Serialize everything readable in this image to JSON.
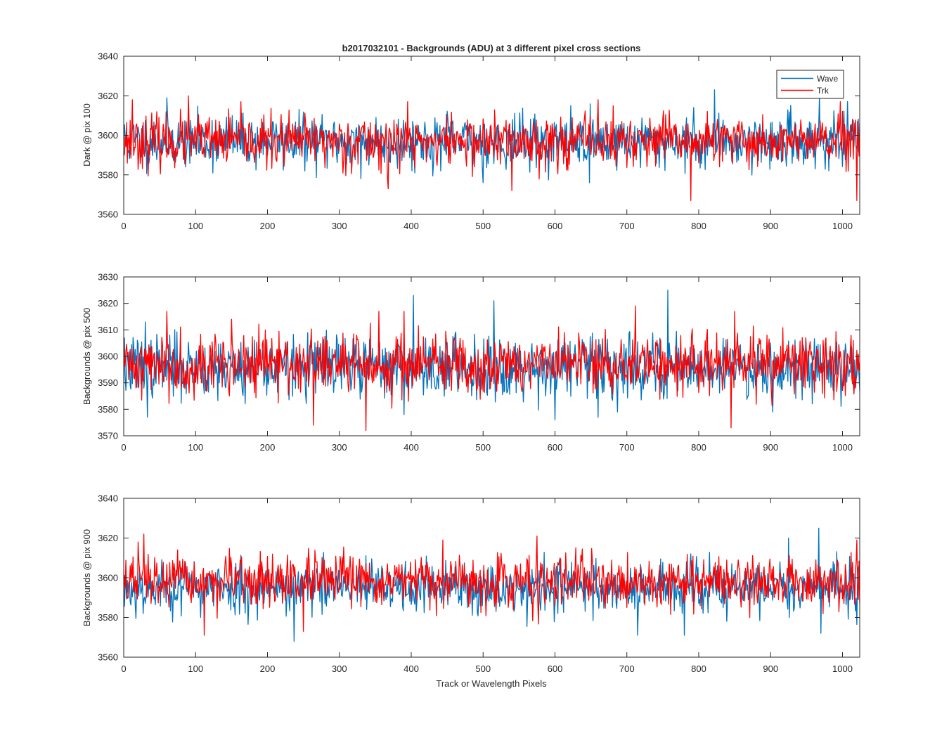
{
  "chart_data": [
    {
      "type": "line",
      "title": "b2017032101 - Backgrounds (ADU) at 3 different pixel cross sections",
      "xlabel": "",
      "ylabel": "Dark @ pix 100",
      "xlim": [
        0,
        1024
      ],
      "ylim": [
        3560,
        3640
      ],
      "xticks": [
        0,
        100,
        200,
        300,
        400,
        500,
        600,
        700,
        800,
        900,
        1000
      ],
      "yticks": [
        3560,
        3580,
        3600,
        3620,
        3640
      ],
      "legend": {
        "position": "top-right",
        "entries": [
          "Wave",
          "Trk"
        ]
      },
      "series": [
        {
          "name": "Wave",
          "color": "#0072BD",
          "mean": 3597,
          "noise": 6.5,
          "min": 3572,
          "max": 3623,
          "seed": 11,
          "peaks": [
            [
              60,
              3619
            ],
            [
              822,
              3623
            ],
            [
              968,
              3620
            ]
          ],
          "dips": [
            [
              330,
              3578
            ],
            [
              500,
              3576
            ],
            [
              648,
              3576
            ]
          ]
        },
        {
          "name": "Trk",
          "color": "#FF0000",
          "mean": 3597,
          "noise": 6.5,
          "min": 3567,
          "max": 3620,
          "seed": 23,
          "peaks": [
            [
              12,
              3618
            ],
            [
              90,
              3620
            ],
            [
              395,
              3617
            ],
            [
              660,
              3618
            ]
          ],
          "dips": [
            [
              368,
              3573
            ],
            [
              540,
              3572
            ],
            [
              789,
              3567
            ],
            [
              1020,
              3567
            ]
          ]
        }
      ]
    },
    {
      "type": "line",
      "title": "",
      "xlabel": "",
      "ylabel": "Backgrounds @ pix 500",
      "xlim": [
        0,
        1024
      ],
      "ylim": [
        3570,
        3630
      ],
      "xticks": [
        0,
        100,
        200,
        300,
        400,
        500,
        600,
        700,
        800,
        900,
        1000
      ],
      "yticks": [
        3570,
        3580,
        3590,
        3600,
        3610,
        3620,
        3630
      ],
      "series": [
        {
          "name": "Wave",
          "color": "#0072BD",
          "mean": 3596,
          "noise": 5.8,
          "min": 3575,
          "max": 3625,
          "seed": 37,
          "peaks": [
            [
              30,
              3613
            ],
            [
              403,
              3623
            ],
            [
              515,
              3621
            ],
            [
              757,
              3625
            ]
          ],
          "dips": [
            [
              33,
              3577
            ],
            [
              600,
              3576
            ],
            [
              660,
              3577
            ]
          ]
        },
        {
          "name": "Trk",
          "color": "#FF0000",
          "mean": 3597,
          "noise": 5.8,
          "min": 3572,
          "max": 3619,
          "seed": 41,
          "peaks": [
            [
              60,
              3617
            ],
            [
              150,
              3614
            ],
            [
              355,
              3617
            ],
            [
              390,
              3617
            ],
            [
              712,
              3619
            ],
            [
              850,
              3617
            ]
          ],
          "dips": [
            [
              264,
              3574
            ],
            [
              337,
              3572
            ],
            [
              845,
              3573
            ]
          ]
        }
      ]
    },
    {
      "type": "line",
      "title": "",
      "xlabel": "Track or Wavelength Pixels",
      "ylabel": "Backgrounds @ pix 900",
      "xlim": [
        0,
        1024
      ],
      "ylim": [
        3560,
        3640
      ],
      "xticks": [
        0,
        100,
        200,
        300,
        400,
        500,
        600,
        700,
        800,
        900,
        1000
      ],
      "yticks": [
        3560,
        3580,
        3600,
        3620,
        3640
      ],
      "series": [
        {
          "name": "Wave",
          "color": "#0072BD",
          "mean": 3595,
          "noise": 6.5,
          "min": 3568,
          "max": 3625,
          "seed": 53,
          "peaks": [
            [
              967,
              3625
            ],
            [
              925,
              3620
            ]
          ],
          "dips": [
            [
              237,
              3568
            ],
            [
              715,
              3571
            ],
            [
              780,
              3571
            ],
            [
              970,
              3572
            ]
          ]
        },
        {
          "name": "Trk",
          "color": "#FF0000",
          "mean": 3598,
          "noise": 6.3,
          "min": 3571,
          "max": 3622,
          "seed": 67,
          "peaks": [
            [
              28,
              3622
            ],
            [
              20,
              3618
            ],
            [
              575,
              3621
            ],
            [
              1020,
              3619
            ]
          ],
          "dips": [
            [
              112,
              3571
            ],
            [
              250,
              3573
            ]
          ]
        }
      ]
    }
  ]
}
